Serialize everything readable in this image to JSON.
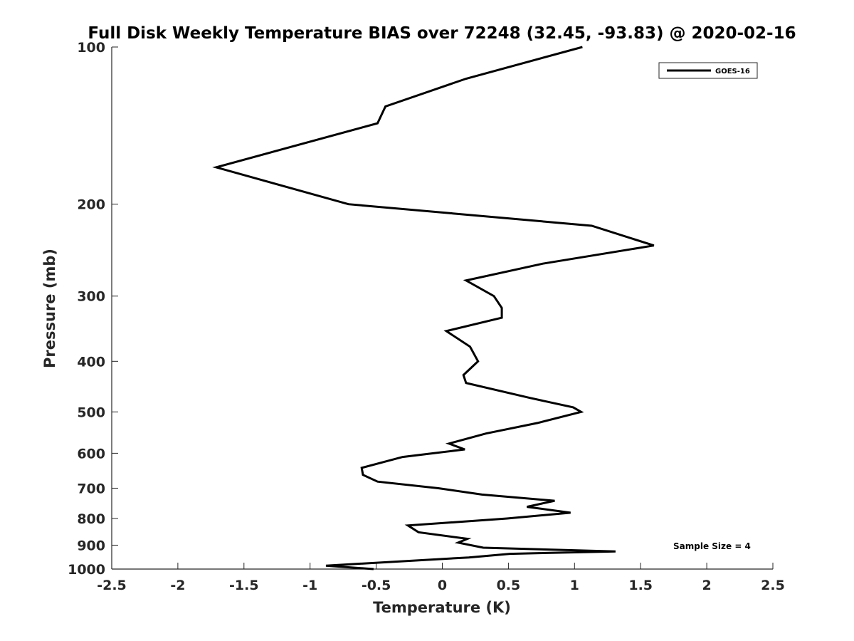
{
  "chart_data": {
    "type": "line",
    "title": "Full Disk Weekly Temperature BIAS over 72248 (32.45, -93.83) @ 2020-02-16",
    "xlabel": "Temperature (K)",
    "ylabel": "Pressure (mb)",
    "xlim": [
      -2.5,
      2.5
    ],
    "ylim": [
      100,
      1000
    ],
    "y_scale": "log",
    "y_reversed": true,
    "x_ticks": [
      "-2.5",
      "-2",
      "-1.5",
      "-1",
      "-0.5",
      "0",
      "0.5",
      "1",
      "1.5",
      "2",
      "2.5"
    ],
    "y_ticks": [
      "100",
      "200",
      "300",
      "400",
      "500",
      "600",
      "700",
      "800",
      "900",
      "1000"
    ],
    "grid": false,
    "legend_position": "top-right",
    "line_color": "#000000",
    "series": [
      {
        "name": "GOES-16",
        "x": [
          1.06,
          0.18,
          -0.43,
          -0.49,
          -1.71,
          -0.71,
          1.13,
          1.6,
          0.76,
          0.18,
          0.39,
          0.45,
          0.45,
          0.03,
          0.21,
          0.27,
          0.16,
          0.18,
          0.66,
          0.99,
          1.05,
          0.72,
          0.33,
          0.05,
          0.17,
          -0.3,
          -0.61,
          -0.6,
          -0.49,
          -0.03,
          0.3,
          0.85,
          0.64,
          0.97,
          0.49,
          -0.26,
          -0.18,
          0.19,
          0.12,
          0.31,
          1.31,
          0.51,
          0.2,
          -0.88,
          -0.52
        ],
        "y": [
          100,
          115,
          130,
          140,
          170,
          200,
          220,
          240,
          260,
          280,
          300,
          316,
          330,
          350,
          375,
          400,
          425,
          440,
          470,
          490,
          500,
          525,
          550,
          575,
          590,
          610,
          640,
          660,
          680,
          700,
          720,
          740,
          760,
          780,
          800,
          825,
          850,
          875,
          890,
          910,
          925,
          935,
          950,
          985,
          1000
        ]
      }
    ],
    "annotations": [
      "Sample Size = 4"
    ]
  }
}
